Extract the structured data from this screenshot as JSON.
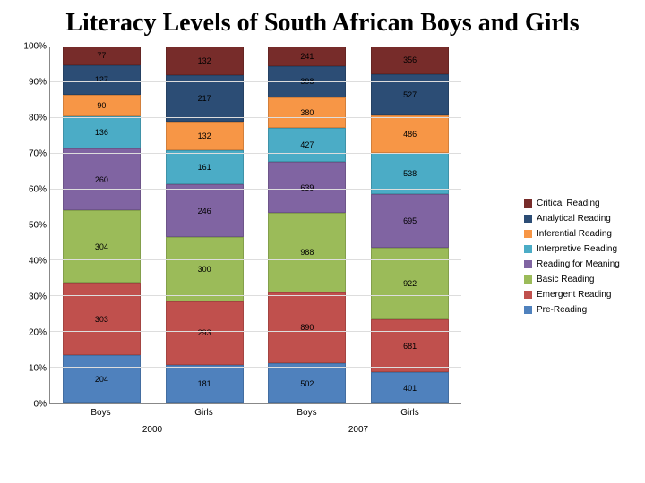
{
  "title": "Literacy Levels of South African Boys and Girls",
  "chart": {
    "type": "stacked-bar-100pct",
    "background_color": "#ffffff",
    "grid_color": "#dddddd",
    "axis_color": "#888888",
    "title_fontsize": 28,
    "label_fontsize": 10,
    "data_label_fontsize": 9,
    "ylim": [
      0,
      100
    ],
    "ytick_step": 10,
    "yticks": [
      "0%",
      "10%",
      "20%",
      "30%",
      "40%",
      "50%",
      "60%",
      "70%",
      "80%",
      "90%",
      "100%"
    ],
    "categories": [
      "Boys",
      "Girls",
      "Boys",
      "Girls"
    ],
    "category_groups": [
      "2000",
      "2007"
    ],
    "series": [
      {
        "name": "Pre-Reading",
        "color": "#4f81bd"
      },
      {
        "name": "Emergent Reading",
        "color": "#c0504d"
      },
      {
        "name": "Basic Reading",
        "color": "#9bbb59"
      },
      {
        "name": "Reading for Meaning",
        "color": "#8064a2"
      },
      {
        "name": "Interpretive Reading",
        "color": "#4bacc6"
      },
      {
        "name": "Inferential Reading",
        "color": "#f79646"
      },
      {
        "name": "Analytical Reading",
        "color": "#2c4d75"
      },
      {
        "name": "Critical Reading",
        "color": "#772c2a"
      }
    ],
    "values": [
      [
        204,
        303,
        304,
        260,
        136,
        90,
        127,
        77
      ],
      [
        181,
        293,
        300,
        246,
        161,
        132,
        217,
        132
      ],
      [
        502,
        890,
        988,
        639,
        427,
        380,
        398,
        241
      ],
      [
        401,
        681,
        922,
        695,
        538,
        486,
        527,
        356
      ]
    ]
  }
}
